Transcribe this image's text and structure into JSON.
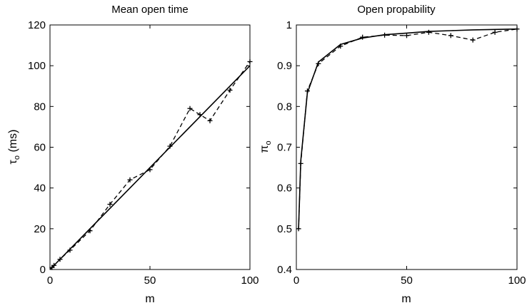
{
  "chart_data": [
    {
      "type": "line",
      "title": "Mean open time",
      "xlabel": "m",
      "ylabel_symbol": "τ",
      "ylabel_subscript": "o",
      "ylabel_unit": " (ms)",
      "xlim": [
        0,
        100
      ],
      "ylim": [
        0,
        120
      ],
      "xticks": [
        0,
        50,
        100
      ],
      "yticks": [
        0,
        20,
        40,
        60,
        80,
        100,
        120
      ],
      "grid": false,
      "legend": "none",
      "series": [
        {
          "style": "solid",
          "x": [
            0,
            100
          ],
          "y": [
            0,
            100
          ]
        },
        {
          "style": "dashed",
          "marker": "+",
          "x": [
            1,
            2,
            5,
            10,
            20,
            30,
            40,
            50,
            60,
            70,
            75,
            80,
            90,
            100
          ],
          "y": [
            1,
            2,
            5,
            9.5,
            19,
            32,
            44,
            49,
            60.5,
            79,
            76,
            73,
            88,
            102
          ]
        }
      ]
    },
    {
      "type": "line",
      "title": "Open propability",
      "xlabel": "m",
      "ylabel_symbol": "π",
      "ylabel_subscript": "o",
      "ylabel_unit": "",
      "xlim": [
        0,
        100
      ],
      "ylim": [
        0.4,
        1
      ],
      "xticks": [
        0,
        50,
        100
      ],
      "yticks": [
        0.4,
        0.5,
        0.6,
        0.7,
        0.8,
        0.9,
        1
      ],
      "grid": false,
      "legend": "none",
      "series": [
        {
          "style": "solid",
          "x": [
            1,
            2,
            5,
            10,
            20,
            30,
            40,
            50,
            60,
            70,
            80,
            90,
            100
          ],
          "y": [
            0.5,
            0.667,
            0.833,
            0.909,
            0.952,
            0.968,
            0.976,
            0.98,
            0.984,
            0.986,
            0.988,
            0.989,
            0.99
          ]
        },
        {
          "style": "dashed",
          "marker": "+",
          "x": [
            1,
            2,
            5,
            10,
            20,
            30,
            40,
            50,
            60,
            70,
            80,
            90,
            100
          ],
          "y": [
            0.5,
            0.66,
            0.838,
            0.905,
            0.948,
            0.97,
            0.975,
            0.974,
            0.982,
            0.974,
            0.963,
            0.982,
            0.99
          ]
        }
      ]
    }
  ]
}
